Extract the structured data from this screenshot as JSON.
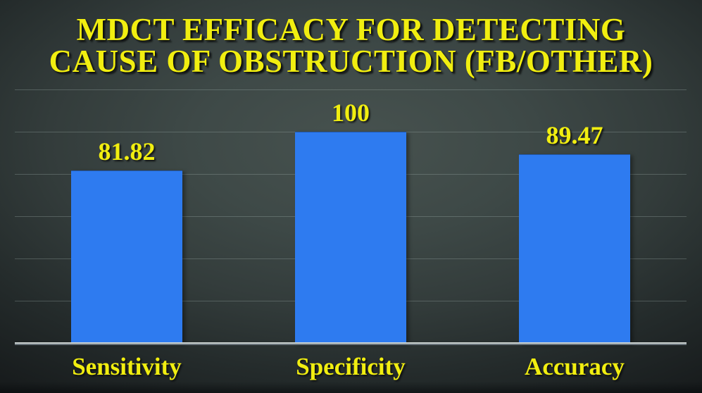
{
  "title": {
    "line1": "MDCT EFFICACY FOR DETECTING",
    "line2": "CAUSE OF OBSTRUCTION (FB/OTHER)"
  },
  "colors": {
    "title_text": "#f1ee10",
    "label_text": "#f1ee10",
    "bar_fill": "#2e7bf0",
    "background_center": "#47524f",
    "background_edge": "#121516",
    "gridline": "rgba(170,185,182,0.30)",
    "baseline_light": "#d2d8d6",
    "baseline_dark": "#59636a"
  },
  "chart_data": {
    "type": "bar",
    "title": "MDCT EFFICACY FOR DETECTING CAUSE OF OBSTRUCTION (FB/OTHER)",
    "categories": [
      "Sensitivity",
      "Specificity",
      "Accuracy"
    ],
    "values": [
      81.82,
      100,
      89.47
    ],
    "data_labels": [
      "81.82",
      "100",
      "89.47"
    ],
    "xlabel": "",
    "ylabel": "",
    "ylim": [
      0,
      120
    ],
    "gridline_interval": 20,
    "grid": true,
    "legend": false,
    "y_tick_labels_shown": false
  }
}
